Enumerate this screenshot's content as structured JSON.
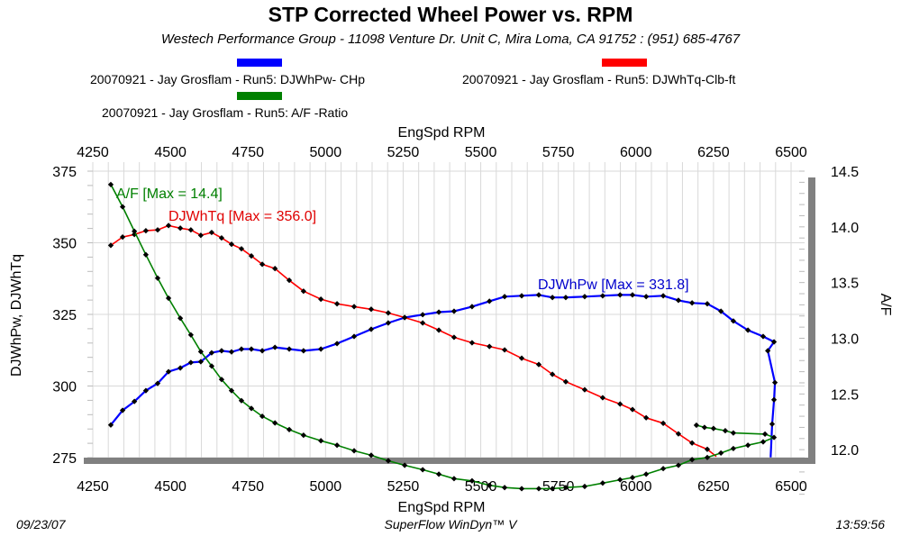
{
  "header": {
    "title": "STP Corrected Wheel Power vs. RPM",
    "subtitle": "Westech Performance Group - 11098 Venture Dr. Unit C, Mira Loma, CA 91752  : (951) 685-4767"
  },
  "footer": {
    "date": "09/23/07",
    "software": "SuperFlow WinDyn™ V",
    "time": "13:59:56"
  },
  "colors": {
    "power": "#0000ff",
    "torque": "#ff0000",
    "af": "#008000",
    "marker": "#000000",
    "grid": "#d9d9d9",
    "shadow": "#808080"
  },
  "chart_data": {
    "type": "line",
    "title": "STP Corrected Wheel Power vs. RPM",
    "xlabel": "EngSpd  RPM",
    "xlabel_top": "EngSpd  RPM",
    "ylabel": "DJWhPw, DJWhTq",
    "ylabel_right": "A/F",
    "xlim": [
      4250,
      6500
    ],
    "ylim": [
      275,
      375
    ],
    "ylim_right": [
      11.5,
      14.5
    ],
    "x_ticks": [
      "4250",
      "4500",
      "4750",
      "5000",
      "5250",
      "5500",
      "5750",
      "6000",
      "6250",
      "6500"
    ],
    "y_ticks": [
      "275",
      "300",
      "325",
      "350",
      "375"
    ],
    "y_ticks_right": [
      "12.0",
      "12.5",
      "13.0",
      "13.5",
      "14.0",
      "14.5"
    ],
    "grid": true,
    "legend": [
      {
        "label": "20070921 - Jay Grosflam - Run5: DJWhPw- CHp",
        "color": "#0000ff"
      },
      {
        "label": "20070921 - Jay Grosflam - Run5: DJWhTq-Clb-ft",
        "color": "#ff0000"
      },
      {
        "label": "20070921 - Jay Grosflam - Run5:  A/F  -Ratio",
        "color": "#008000"
      }
    ],
    "annotations": {
      "af": "A/F    [Max = 14.4]",
      "torque": "DJWhTq [Max = 356.0]",
      "power": "DJWhPw [Max = 331.8]"
    },
    "series": [
      {
        "name": "DJWhPw",
        "axis": "left",
        "color": "#0000ff",
        "x": [
          4308,
          4346,
          4384,
          4421,
          4459,
          4494,
          4532,
          4566,
          4598,
          4633,
          4665,
          4697,
          4729,
          4761,
          4796,
          4837,
          4883,
          4929,
          4985,
          5037,
          5092,
          5147,
          5202,
          5255,
          5313,
          5365,
          5414,
          5472,
          5528,
          5577,
          5632,
          5687,
          5731,
          5774,
          5835,
          5893,
          5949,
          5989,
          6033,
          6088,
          6137,
          6181,
          6230,
          6274,
          6314,
          6361,
          6410,
          6445,
          6425,
          6448,
          6445,
          6439,
          6434
        ],
        "y": [
          286.4,
          291.5,
          294.6,
          298.4,
          300.9,
          305.0,
          306.3,
          308.2,
          308.5,
          311.6,
          312.3,
          311.9,
          312.9,
          312.9,
          312.3,
          313.5,
          312.9,
          312.3,
          312.9,
          314.8,
          317.3,
          319.8,
          322.0,
          323.9,
          324.9,
          325.8,
          326.1,
          327.7,
          329.6,
          331.2,
          331.5,
          331.8,
          330.9,
          330.9,
          331.2,
          331.5,
          331.8,
          331.8,
          331.2,
          331.5,
          329.9,
          329.0,
          328.7,
          326.1,
          322.7,
          319.5,
          317.3,
          315.4,
          312.3,
          301.2,
          295.2,
          286.7,
          275.1
        ]
      },
      {
        "name": "DJWhTq",
        "axis": "left",
        "color": "#ff0000",
        "x": [
          4308,
          4346,
          4384,
          4421,
          4459,
          4494,
          4532,
          4566,
          4598,
          4633,
          4665,
          4697,
          4729,
          4761,
          4796,
          4837,
          4883,
          4929,
          4985,
          5037,
          5092,
          5147,
          5202,
          5255,
          5313,
          5365,
          5414,
          5472,
          5528,
          5577,
          5632,
          5687,
          5731,
          5774,
          5835,
          5893,
          5949,
          5989,
          6033,
          6088,
          6137,
          6181,
          6230,
          6259
        ],
        "y": [
          349.1,
          352.0,
          352.9,
          354.2,
          354.5,
          356.0,
          355.1,
          354.5,
          352.6,
          353.6,
          351.7,
          349.5,
          347.9,
          345.4,
          342.5,
          341.0,
          336.9,
          333.1,
          330.3,
          328.7,
          327.7,
          326.8,
          325.5,
          323.9,
          322.0,
          319.5,
          317.0,
          315.1,
          313.8,
          312.6,
          309.7,
          307.5,
          304.1,
          301.5,
          298.7,
          295.9,
          293.7,
          291.8,
          288.9,
          287.0,
          283.3,
          280.1,
          277.9,
          275.4
        ]
      },
      {
        "name": "A/F",
        "axis": "right",
        "color": "#008000",
        "x": [
          4308,
          4346,
          4384,
          4421,
          4459,
          4494,
          4532,
          4566,
          4598,
          4633,
          4665,
          4697,
          4729,
          4761,
          4796,
          4837,
          4883,
          4929,
          4985,
          5037,
          5092,
          5147,
          5202,
          5255,
          5313,
          5365,
          5414,
          5472,
          5528,
          5577,
          5632,
          5687,
          5731,
          5774,
          5835,
          5893,
          5949,
          5989,
          6033,
          6088,
          6137,
          6181,
          6230,
          6274,
          6314,
          6361,
          6410,
          6445,
          6416,
          6314,
          6288,
          6250,
          6221,
          6195
        ],
        "y": [
          14.38,
          14.18,
          13.96,
          13.75,
          13.54,
          13.36,
          13.18,
          13.03,
          12.88,
          12.75,
          12.63,
          12.53,
          12.44,
          12.37,
          12.3,
          12.24,
          12.18,
          12.13,
          12.08,
          12.04,
          11.99,
          11.95,
          11.9,
          11.86,
          11.82,
          11.78,
          11.74,
          11.72,
          11.68,
          11.66,
          11.65,
          11.65,
          11.65,
          11.66,
          11.67,
          11.7,
          11.73,
          11.75,
          11.78,
          11.83,
          11.86,
          11.91,
          11.93,
          11.97,
          12.01,
          12.04,
          12.07,
          12.11,
          12.14,
          12.15,
          12.17,
          12.19,
          12.2,
          12.22
        ]
      }
    ]
  }
}
